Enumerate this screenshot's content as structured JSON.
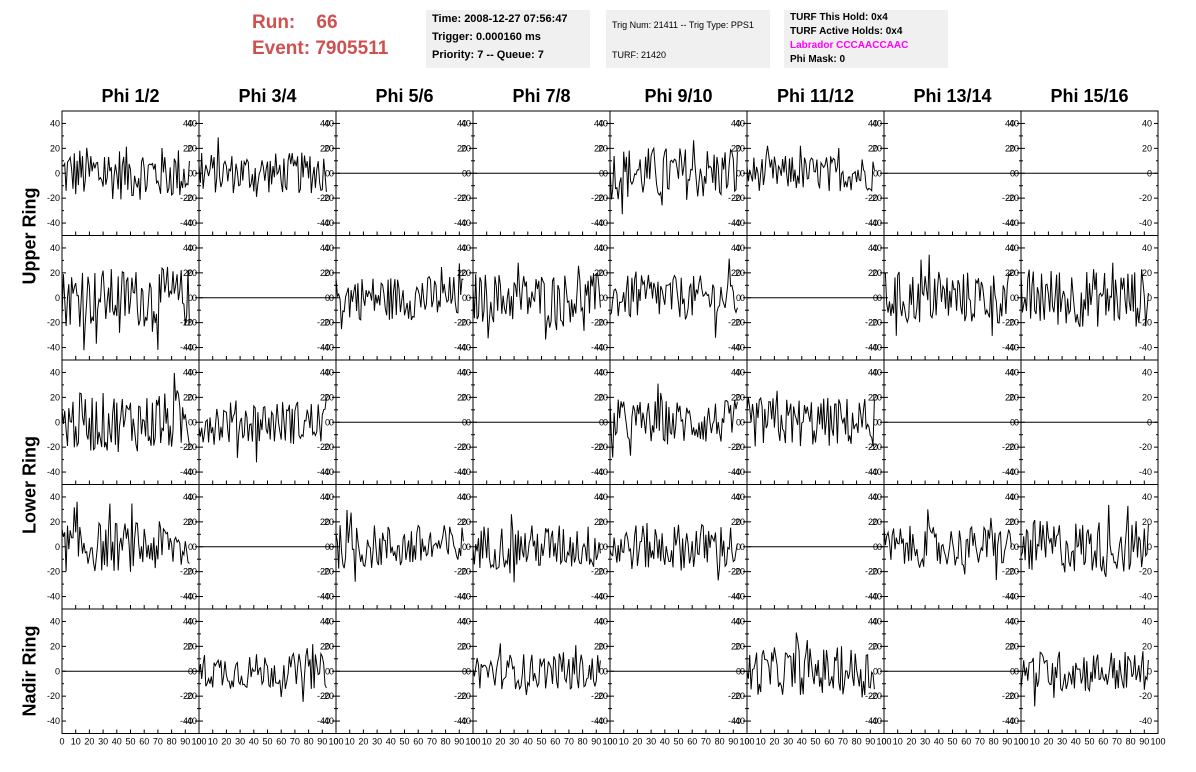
{
  "header": {
    "run_label": "Run:",
    "run_value": "66",
    "event_label": "Event:",
    "event_value": "7905511",
    "time": "Time: 2008-12-27 07:56:47",
    "trigger": "Trigger: 0.000160 ms",
    "priority": "Priority: 7 -- Queue: 7",
    "trig_num": "Trig Num: 21411 -- Trig Type: PPS1",
    "turf": "TURF: 21420",
    "turf_this_hold": "TURF This Hold: 0x4",
    "turf_active_holds": "TURF Active Holds: 0x4",
    "labrador": "Labrador CCCAACCAAC",
    "phi_mask": "Phi Mask: 0",
    "run_color": "#d05050",
    "labrador_color": "#ff00ff"
  },
  "columns": [
    "Phi 1/2",
    "Phi 3/4",
    "Phi 5/6",
    "Phi 7/8",
    "Phi 9/10",
    "Phi 11/12",
    "Phi 13/14",
    "Phi 15/16"
  ],
  "row_groups": [
    "Upper Ring",
    "Lower Ring",
    "Nadir Ring"
  ],
  "chart_data": {
    "type": "line",
    "x_range": [
      0,
      100
    ],
    "ylim": [
      -50,
      50
    ],
    "x_ticks": [
      "0",
      "10",
      "20",
      "30",
      "40",
      "50",
      "60",
      "70",
      "80",
      "90",
      "100"
    ],
    "y_ticks": [
      "40",
      "20",
      "0",
      "-20",
      "-40"
    ],
    "rows": 5,
    "cols": 8,
    "channel_amplitude": [
      [
        18,
        14,
        0,
        0,
        18,
        12,
        0,
        0
      ],
      [
        20,
        0,
        15,
        17,
        15,
        0,
        18,
        20
      ],
      [
        20,
        15,
        0,
        0,
        15,
        17,
        0,
        0
      ],
      [
        17,
        0,
        15,
        15,
        16,
        0,
        14,
        18
      ],
      [
        0,
        12,
        0,
        12,
        0,
        16,
        0,
        14
      ]
    ],
    "channel_sample_count": [
      [
        94,
        94,
        0,
        0,
        94,
        94,
        0,
        0
      ],
      [
        94,
        0,
        94,
        94,
        94,
        0,
        94,
        94
      ],
      [
        94,
        94,
        0,
        0,
        94,
        94,
        0,
        0
      ],
      [
        94,
        0,
        94,
        94,
        94,
        0,
        94,
        94
      ],
      [
        0,
        94,
        0,
        94,
        0,
        94,
        0,
        94
      ]
    ]
  }
}
